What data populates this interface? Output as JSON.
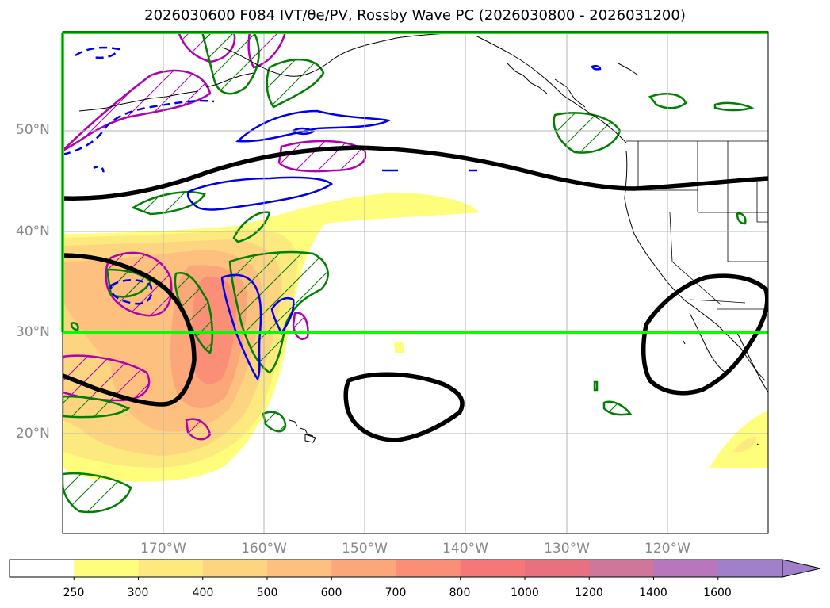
{
  "figure": {
    "title": "2026030600 F084 IVT/θe/PV, Rossby Wave PC (2026030800 - 2026031200)"
  },
  "map": {
    "lat_labels": [
      "50°N",
      "40°N",
      "30°N",
      "20°N"
    ],
    "lon_labels": [
      "170°W",
      "160°W",
      "150°W",
      "140°W",
      "130°W",
      "120°W"
    ]
  },
  "colorbar": {
    "ticks": [
      "250",
      "300",
      "400",
      "500",
      "600",
      "700",
      "800",
      "1000",
      "1200",
      "1400",
      "1600"
    ],
    "colors": [
      "#ffffff",
      "#fefe7c",
      "#fdea7f",
      "#fdd580",
      "#fdc07f",
      "#fca77a",
      "#fb8e76",
      "#f57778",
      "#e7717e",
      "#cf779a",
      "#b877bd",
      "#a080c8"
    ]
  }
}
